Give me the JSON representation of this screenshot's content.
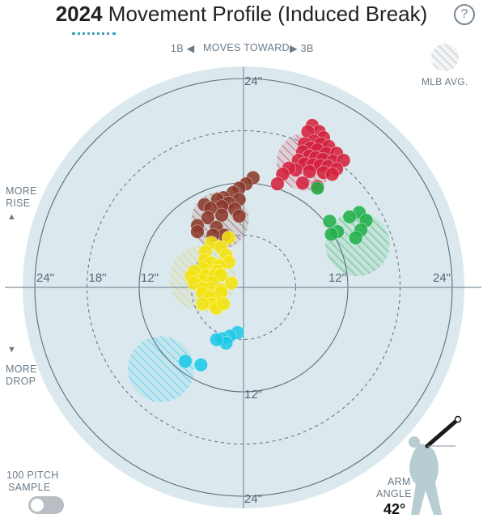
{
  "header": {
    "year": "2024",
    "title": "Movement Profile (Induced Break)",
    "help": "?"
  },
  "direction": {
    "left": "1B ◀",
    "middle": "MOVES TOWARD",
    "right": "▶ 3B"
  },
  "legend": {
    "mlb_avg": "MLB AVG."
  },
  "side_labels": {
    "rise_line1": "MORE",
    "rise_line2": "RISE",
    "rise_arrow": "▲",
    "drop_arrow": "▼",
    "drop_line1": "MORE",
    "drop_line2": "DROP"
  },
  "sample": {
    "line1": "100 PITCH",
    "line2": "SAMPLE",
    "enabled": false
  },
  "arm": {
    "line1": "ARM",
    "line2": "ANGLE",
    "value": "42°"
  },
  "colors": {
    "background_disc": "#dbe9ef",
    "axes": "#7f8f9c",
    "red": "#d4213d",
    "brown": "#8b3a2b",
    "yellow": "#f2e30f",
    "green": "#22b14c",
    "cyan": "#1ec8e6"
  },
  "chart_data": {
    "type": "scatter",
    "title": "Movement Profile (Induced Break)",
    "xlabel": "",
    "ylabel": "",
    "xlim": [
      -30,
      30
    ],
    "ylim": [
      -30,
      30
    ],
    "rings": [
      6,
      12,
      18,
      24
    ],
    "ring_labels": [
      {
        "text": "24\"",
        "pos": "top"
      },
      {
        "text": "12\"",
        "pos": "bottom"
      },
      {
        "text": "24\"",
        "pos": "bottom"
      },
      {
        "text": "24\"",
        "pos": "left"
      },
      {
        "text": "18\"",
        "pos": "left"
      },
      {
        "text": "12\"",
        "pos": "left"
      },
      {
        "text": "12\"",
        "pos": "right"
      },
      {
        "text": "24\"",
        "pos": "right"
      }
    ],
    "mlb_averages": [
      {
        "color": "red",
        "x": 7.1,
        "y": 14.4,
        "r": 3.3
      },
      {
        "color": "brown",
        "x": -2.7,
        "y": 7.7,
        "r": 3.3
      },
      {
        "color": "yellow",
        "x": -4.7,
        "y": 1.0,
        "r": 3.8
      },
      {
        "color": "green",
        "x": 13.1,
        "y": 5.0,
        "r": 3.7
      },
      {
        "color": "cyan",
        "x": -9.5,
        "y": -9.4,
        "r": 3.8
      }
    ],
    "series": [
      {
        "color": "red",
        "points": [
          [
            7.9,
            18.6
          ],
          [
            8.7,
            17.9
          ],
          [
            7.4,
            17.9
          ],
          [
            9.2,
            17.2
          ],
          [
            8.1,
            16.8
          ],
          [
            7.0,
            16.5
          ],
          [
            8.9,
            16.5
          ],
          [
            9.8,
            16.2
          ],
          [
            7.7,
            16.0
          ],
          [
            8.5,
            15.8
          ],
          [
            6.8,
            15.6
          ],
          [
            9.5,
            15.4
          ],
          [
            10.7,
            15.4
          ],
          [
            7.6,
            15.1
          ],
          [
            8.3,
            14.9
          ],
          [
            9.1,
            14.7
          ],
          [
            10.3,
            14.5
          ],
          [
            11.5,
            14.6
          ],
          [
            6.3,
            14.6
          ],
          [
            7.0,
            14.2
          ],
          [
            8.0,
            14.1
          ],
          [
            8.8,
            14.0
          ],
          [
            9.7,
            13.9
          ],
          [
            10.7,
            13.6
          ],
          [
            6.0,
            13.5
          ],
          [
            5.2,
            13.7
          ],
          [
            7.6,
            13.3
          ],
          [
            9.2,
            13.2
          ],
          [
            10.2,
            13.0
          ],
          [
            4.5,
            13.0
          ],
          [
            6.8,
            12.0
          ],
          [
            3.9,
            11.9
          ],
          [
            8.5,
            11.6
          ]
        ]
      },
      {
        "color": "green",
        "points": [
          [
            8.5,
            11.4
          ],
          [
            13.3,
            8.6
          ],
          [
            12.2,
            8.1
          ],
          [
            14.1,
            7.7
          ],
          [
            9.9,
            7.6
          ],
          [
            13.5,
            6.6
          ],
          [
            10.8,
            6.4
          ],
          [
            10.1,
            6.1
          ],
          [
            12.9,
            5.7
          ]
        ]
      },
      {
        "color": "brown",
        "points": [
          [
            1.1,
            12.6
          ],
          [
            0.3,
            11.9
          ],
          [
            -0.5,
            11.4
          ],
          [
            -1.2,
            10.9
          ],
          [
            -2.3,
            10.3
          ],
          [
            -3.0,
            10.1
          ],
          [
            -0.5,
            10.1
          ],
          [
            -1.7,
            9.7
          ],
          [
            -4.5,
            9.5
          ],
          [
            -2.5,
            9.3
          ],
          [
            -3.8,
            9.1
          ],
          [
            -1.0,
            9.0
          ],
          [
            -0.5,
            8.2
          ],
          [
            -2.5,
            8.3
          ],
          [
            -4.1,
            8.0
          ],
          [
            -5.3,
            7.1
          ],
          [
            -3.1,
            6.9
          ],
          [
            -2.2,
            6.0
          ],
          [
            -3.5,
            6.0
          ],
          [
            -5.3,
            6.4
          ]
        ]
      },
      {
        "color": "yellow",
        "points": [
          [
            -1.7,
            5.7
          ],
          [
            -3.7,
            5.1
          ],
          [
            -2.6,
            4.6
          ],
          [
            -4.4,
            4.1
          ],
          [
            -2.0,
            3.7
          ],
          [
            -4.5,
            3.1
          ],
          [
            -1.7,
            2.9
          ],
          [
            -3.7,
            2.8
          ],
          [
            -2.8,
            2.5
          ],
          [
            -4.7,
            2.2
          ],
          [
            -3.0,
            1.9
          ],
          [
            -5.7,
            1.8
          ],
          [
            -4.3,
            1.4
          ],
          [
            -3.3,
            1.4
          ],
          [
            -6.0,
            1.3
          ],
          [
            -2.6,
            1.4
          ],
          [
            -4.7,
            0.8
          ],
          [
            -3.6,
            0.6
          ],
          [
            -1.4,
            0.5
          ],
          [
            -5.7,
            0.5
          ],
          [
            -3.9,
            -0.1
          ],
          [
            -4.7,
            -0.1
          ],
          [
            -2.6,
            -0.3
          ],
          [
            -4.7,
            -0.7
          ],
          [
            -2.6,
            -0.6
          ],
          [
            -3.3,
            -1.2
          ],
          [
            -3.9,
            -1.2
          ],
          [
            -3.6,
            -1.9
          ],
          [
            -4.7,
            -1.9
          ],
          [
            -3.1,
            -2.4
          ],
          [
            -2.3,
            -1.9
          ]
        ]
      },
      {
        "color": "cyan",
        "points": [
          [
            -0.7,
            -5.2
          ],
          [
            -1.6,
            -5.6
          ],
          [
            -2.5,
            -5.9
          ],
          [
            -2.0,
            -6.4
          ],
          [
            -3.1,
            -6.0
          ],
          [
            -6.7,
            -8.5
          ],
          [
            -4.9,
            -8.9
          ]
        ]
      }
    ]
  }
}
